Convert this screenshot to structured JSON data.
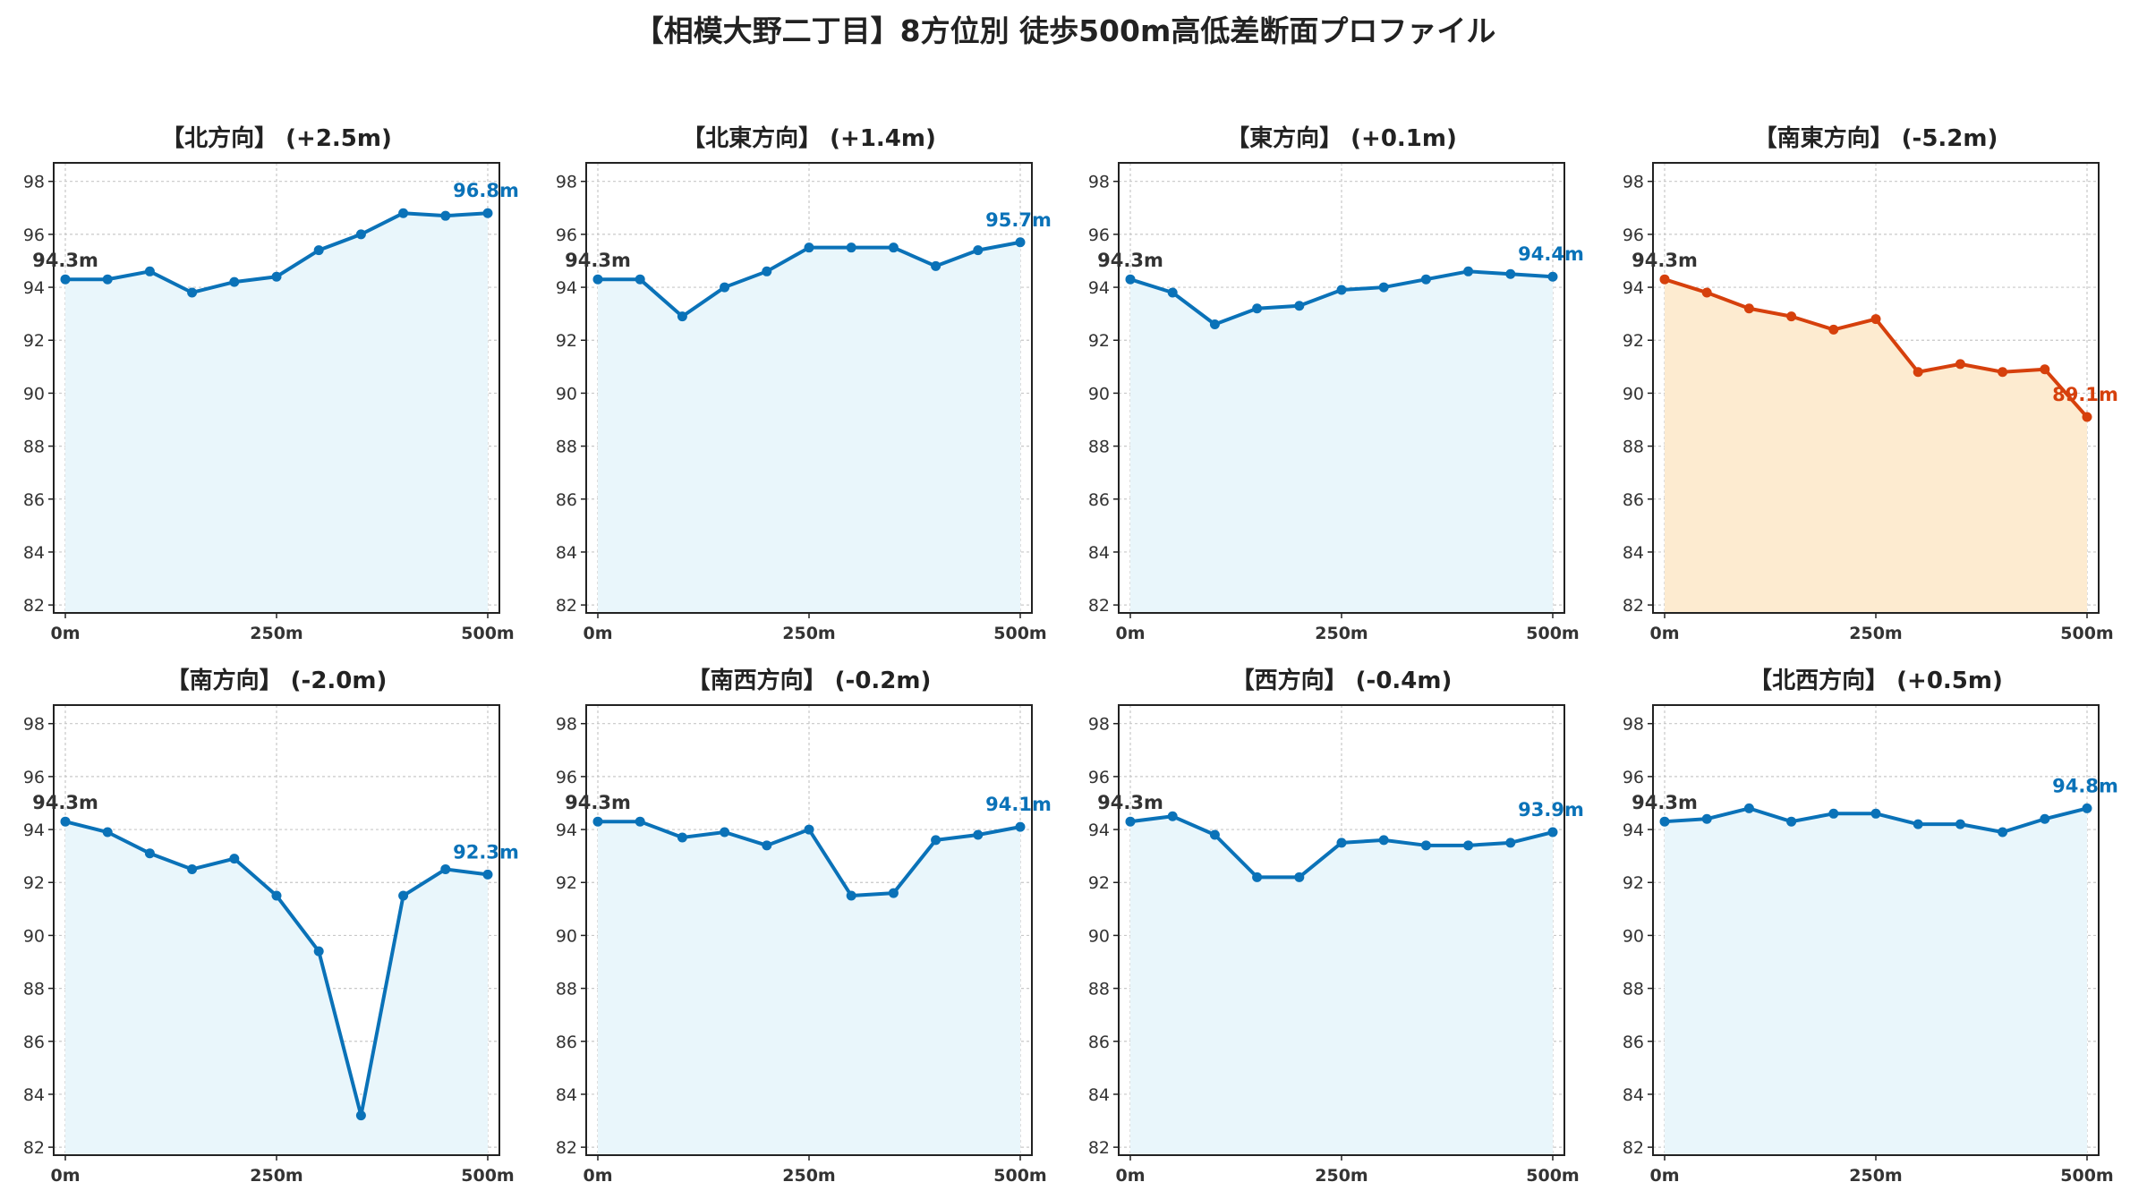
{
  "title": "【相模大野二丁目】8方位別 徒歩500m高低差断面プロファイル",
  "colors": {
    "normal": "#0a72b8",
    "normal_fill": "#e9f6fb",
    "alert": "#d6400c",
    "alert_fill": "#fdebd0",
    "start_label": "#333333"
  },
  "chart_data": [
    {
      "type": "area",
      "title": "【北方向】 (+2.5m)",
      "status": "normal",
      "x": [
        0,
        50,
        100,
        150,
        200,
        250,
        300,
        350,
        400,
        450,
        500
      ],
      "values": [
        94.3,
        94.3,
        94.6,
        93.8,
        94.2,
        94.4,
        95.4,
        96.0,
        96.8,
        96.7,
        96.8
      ],
      "start_label": "94.3m",
      "end_label": "96.8m",
      "xticks": [
        "0m",
        "250m",
        "500m"
      ],
      "yticks": [
        82,
        84,
        86,
        88,
        90,
        92,
        94,
        96,
        98
      ],
      "ylim": [
        81.7,
        98.7
      ],
      "grid": true
    },
    {
      "type": "area",
      "title": "【北東方向】 (+1.4m)",
      "status": "normal",
      "x": [
        0,
        50,
        100,
        150,
        200,
        250,
        300,
        350,
        400,
        450,
        500
      ],
      "values": [
        94.3,
        94.3,
        92.9,
        94.0,
        94.6,
        95.5,
        95.5,
        95.5,
        94.8,
        95.4,
        95.7
      ],
      "start_label": "94.3m",
      "end_label": "95.7m",
      "xticks": [
        "0m",
        "250m",
        "500m"
      ],
      "yticks": [
        82,
        84,
        86,
        88,
        90,
        92,
        94,
        96,
        98
      ],
      "ylim": [
        81.7,
        98.7
      ],
      "grid": true
    },
    {
      "type": "area",
      "title": "【東方向】 (+0.1m)",
      "status": "normal",
      "x": [
        0,
        50,
        100,
        150,
        200,
        250,
        300,
        350,
        400,
        450,
        500
      ],
      "values": [
        94.3,
        93.8,
        92.6,
        93.2,
        93.3,
        93.9,
        94.0,
        94.3,
        94.6,
        94.5,
        94.4
      ],
      "start_label": "94.3m",
      "end_label": "94.4m",
      "xticks": [
        "0m",
        "250m",
        "500m"
      ],
      "yticks": [
        82,
        84,
        86,
        88,
        90,
        92,
        94,
        96,
        98
      ],
      "ylim": [
        81.7,
        98.7
      ],
      "grid": true
    },
    {
      "type": "area",
      "title": "【南東方向】 (-5.2m)",
      "status": "alert",
      "x": [
        0,
        50,
        100,
        150,
        200,
        250,
        300,
        350,
        400,
        450,
        500
      ],
      "values": [
        94.3,
        93.8,
        93.2,
        92.9,
        92.4,
        92.8,
        90.8,
        91.1,
        90.8,
        90.9,
        89.1
      ],
      "start_label": "94.3m",
      "end_label": "89.1m",
      "xticks": [
        "0m",
        "250m",
        "500m"
      ],
      "yticks": [
        82,
        84,
        86,
        88,
        90,
        92,
        94,
        96,
        98
      ],
      "ylim": [
        81.7,
        98.7
      ],
      "grid": true
    },
    {
      "type": "area",
      "title": "【南方向】 (-2.0m)",
      "status": "normal",
      "x": [
        0,
        50,
        100,
        150,
        200,
        250,
        300,
        350,
        400,
        450,
        500
      ],
      "values": [
        94.3,
        93.9,
        93.1,
        92.5,
        92.9,
        91.5,
        89.4,
        83.2,
        91.5,
        92.5,
        92.3
      ],
      "start_label": "94.3m",
      "end_label": "92.3m",
      "xticks": [
        "0m",
        "250m",
        "500m"
      ],
      "yticks": [
        82,
        84,
        86,
        88,
        90,
        92,
        94,
        96,
        98
      ],
      "ylim": [
        81.7,
        98.7
      ],
      "grid": true
    },
    {
      "type": "area",
      "title": "【南西方向】 (-0.2m)",
      "status": "normal",
      "x": [
        0,
        50,
        100,
        150,
        200,
        250,
        300,
        350,
        400,
        450,
        500
      ],
      "values": [
        94.3,
        94.3,
        93.7,
        93.9,
        93.4,
        94.0,
        91.5,
        91.6,
        93.6,
        93.8,
        94.1
      ],
      "start_label": "94.3m",
      "end_label": "94.1m",
      "xticks": [
        "0m",
        "250m",
        "500m"
      ],
      "yticks": [
        82,
        84,
        86,
        88,
        90,
        92,
        94,
        96,
        98
      ],
      "ylim": [
        81.7,
        98.7
      ],
      "grid": true
    },
    {
      "type": "area",
      "title": "【西方向】 (-0.4m)",
      "status": "normal",
      "x": [
        0,
        50,
        100,
        150,
        200,
        250,
        300,
        350,
        400,
        450,
        500
      ],
      "values": [
        94.3,
        94.5,
        93.8,
        92.2,
        92.2,
        93.5,
        93.6,
        93.4,
        93.4,
        93.5,
        93.9
      ],
      "start_label": "94.3m",
      "end_label": "93.9m",
      "xticks": [
        "0m",
        "250m",
        "500m"
      ],
      "yticks": [
        82,
        84,
        86,
        88,
        90,
        92,
        94,
        96,
        98
      ],
      "ylim": [
        81.7,
        98.7
      ],
      "grid": true
    },
    {
      "type": "area",
      "title": "【北西方向】 (+0.5m)",
      "status": "normal",
      "x": [
        0,
        50,
        100,
        150,
        200,
        250,
        300,
        350,
        400,
        450,
        500
      ],
      "values": [
        94.3,
        94.4,
        94.8,
        94.3,
        94.6,
        94.6,
        94.2,
        94.2,
        93.9,
        94.4,
        94.8
      ],
      "start_label": "94.3m",
      "end_label": "94.8m",
      "xticks": [
        "0m",
        "250m",
        "500m"
      ],
      "yticks": [
        82,
        84,
        86,
        88,
        90,
        92,
        94,
        96,
        98
      ],
      "ylim": [
        81.7,
        98.7
      ],
      "grid": true
    }
  ]
}
